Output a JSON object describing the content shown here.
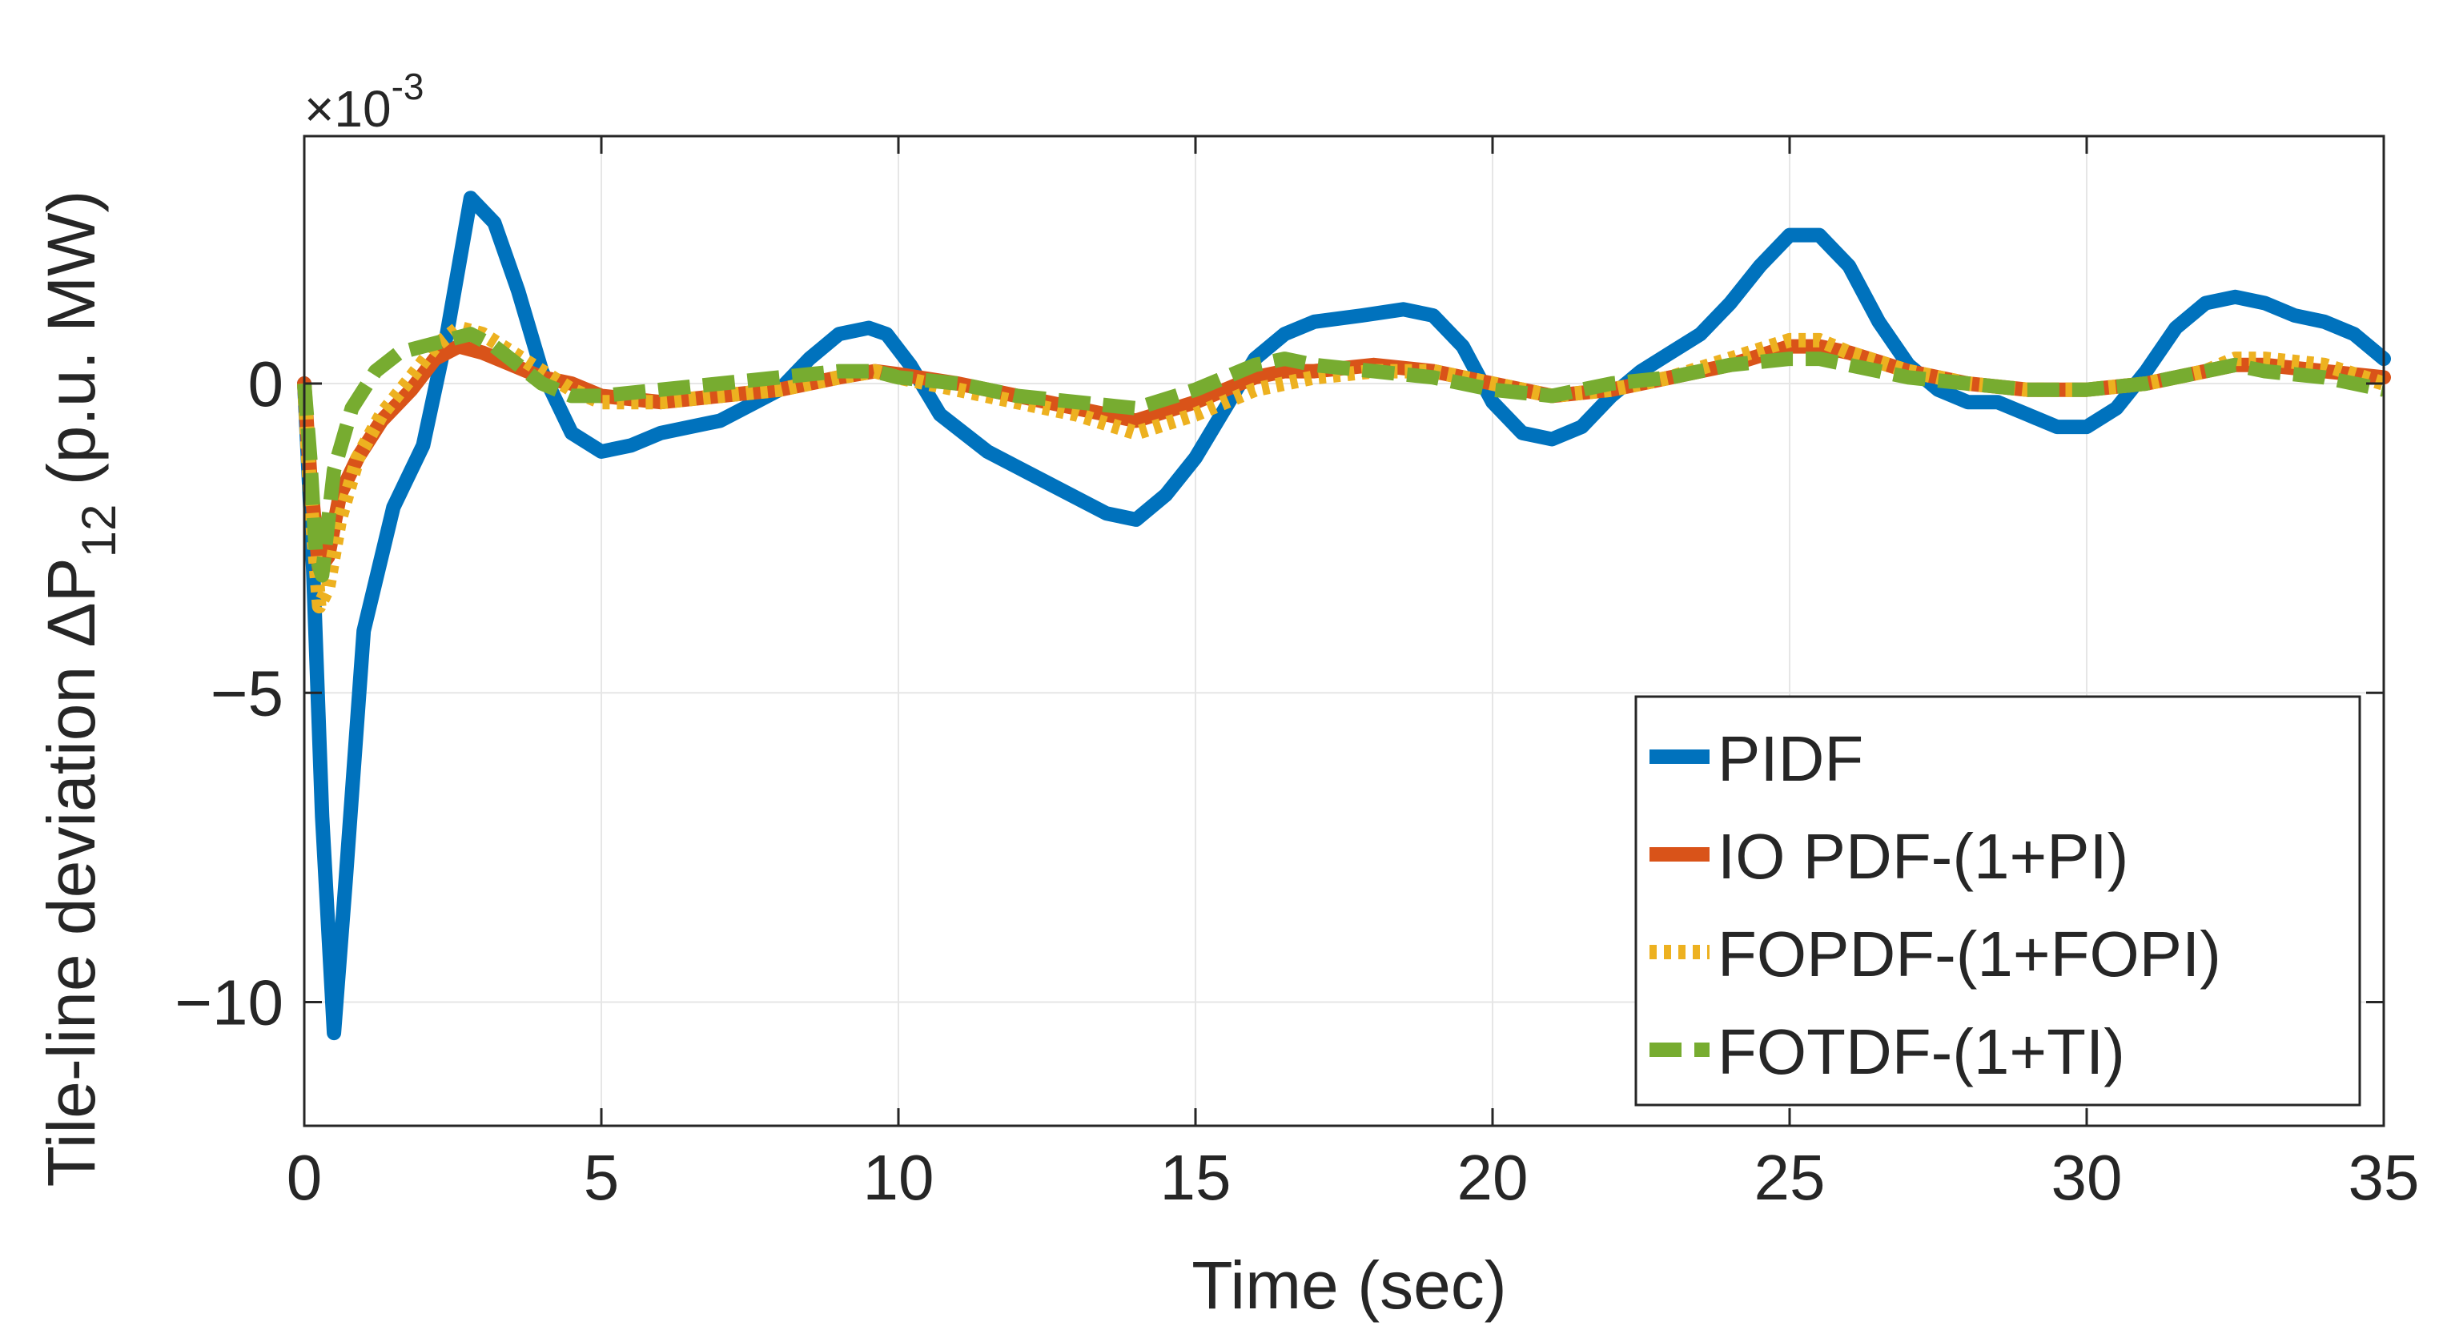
{
  "chart_data": {
    "type": "line",
    "xlabel": "Time (sec)",
    "ylabel_main": "Tile-line deviation ΔP",
    "ylabel_sub": "12",
    "ylabel_unit": " (p.u. MW)",
    "y_multiplier_base": "×10",
    "y_multiplier_exp": "-3",
    "xlim": [
      0,
      35
    ],
    "ylim": [
      -12,
      4
    ],
    "xticks": [
      0,
      5,
      10,
      15,
      20,
      25,
      30,
      35
    ],
    "yticks": [
      -10,
      -5,
      0
    ],
    "grid": true,
    "legend_position": "bottom-right",
    "series": [
      {
        "name": "PIDF",
        "color": "#0072BD",
        "dash": "solid",
        "x": [
          0,
          0.15,
          0.3,
          0.5,
          0.7,
          1.0,
          1.5,
          2.0,
          2.4,
          2.8,
          3.2,
          3.6,
          4.0,
          4.5,
          5.0,
          5.5,
          6.0,
          7.0,
          8.0,
          8.5,
          9.0,
          9.5,
          9.8,
          10.2,
          10.7,
          11.5,
          12.5,
          13.5,
          14.0,
          14.5,
          15.0,
          15.5,
          16.0,
          16.5,
          17.0,
          17.8,
          18.5,
          19.0,
          19.5,
          20.0,
          20.5,
          21.0,
          21.5,
          22.0,
          22.5,
          23.0,
          23.5,
          24.0,
          24.5,
          25.0,
          25.5,
          26.0,
          26.5,
          27.0,
          27.5,
          28.0,
          28.5,
          29.0,
          29.5,
          30.0,
          30.5,
          31.0,
          31.5,
          32.0,
          32.5,
          33.0,
          33.5,
          34.0,
          34.5,
          35.0
        ],
        "values": [
          0,
          -3,
          -7,
          -10.5,
          -8,
          -4,
          -2,
          -1,
          0.8,
          3.0,
          2.6,
          1.5,
          0.2,
          -0.8,
          -1.1,
          -1.0,
          -0.8,
          -0.6,
          -0.1,
          0.4,
          0.8,
          0.9,
          0.8,
          0.3,
          -0.5,
          -1.1,
          -1.6,
          -2.1,
          -2.2,
          -1.8,
          -1.2,
          -0.4,
          0.4,
          0.8,
          1.0,
          1.1,
          1.2,
          1.1,
          0.6,
          -0.3,
          -0.8,
          -0.9,
          -0.7,
          -0.2,
          0.2,
          0.5,
          0.8,
          1.3,
          1.9,
          2.4,
          2.4,
          1.9,
          1.0,
          0.3,
          -0.1,
          -0.3,
          -0.3,
          -0.5,
          -0.7,
          -0.7,
          -0.4,
          0.2,
          0.9,
          1.3,
          1.4,
          1.3,
          1.1,
          1.0,
          0.8,
          0.4
        ]
      },
      {
        "name": "IO PDF-(1+PI)",
        "color": "#D95319",
        "dash": "solid",
        "x": [
          0,
          0.1,
          0.25,
          0.4,
          0.6,
          0.9,
          1.3,
          1.8,
          2.2,
          2.6,
          3.0,
          3.5,
          4.0,
          4.5,
          5.0,
          6.0,
          7.0,
          8.0,
          9.0,
          9.6,
          10.0,
          11.0,
          12.0,
          13.0,
          14.0,
          15.0,
          16.0,
          16.5,
          17.0,
          18.0,
          19.0,
          20.0,
          21.0,
          22.0,
          23.0,
          24.0,
          25.0,
          25.5,
          26.0,
          27.0,
          28.0,
          29.0,
          30.0,
          31.0,
          32.0,
          32.5,
          33.0,
          34.0,
          35.0
        ],
        "values": [
          0,
          -1.5,
          -3.0,
          -2.8,
          -1.8,
          -1.2,
          -0.6,
          -0.1,
          0.4,
          0.6,
          0.5,
          0.3,
          0.1,
          0.0,
          -0.2,
          -0.3,
          -0.2,
          -0.1,
          0.1,
          0.2,
          0.15,
          0.0,
          -0.2,
          -0.4,
          -0.6,
          -0.3,
          0.1,
          0.2,
          0.2,
          0.3,
          0.2,
          0.0,
          -0.2,
          -0.1,
          0.1,
          0.3,
          0.6,
          0.6,
          0.5,
          0.2,
          0.0,
          -0.1,
          -0.1,
          0.0,
          0.2,
          0.3,
          0.3,
          0.2,
          0.1
        ]
      },
      {
        "name": "FOPDF-(1+FOPI)",
        "color": "#EDB120",
        "dash": "dotted",
        "x": [
          0,
          0.1,
          0.25,
          0.4,
          0.6,
          0.9,
          1.3,
          1.8,
          2.2,
          2.6,
          3.0,
          3.5,
          4.0,
          4.5,
          5.0,
          6.0,
          7.0,
          8.0,
          9.0,
          9.6,
          10.0,
          11.0,
          12.0,
          13.0,
          14.0,
          15.0,
          16.0,
          16.5,
          17.0,
          18.0,
          19.0,
          20.0,
          21.0,
          22.0,
          23.0,
          24.0,
          25.0,
          25.5,
          26.0,
          27.0,
          28.0,
          29.0,
          30.0,
          31.0,
          32.0,
          32.5,
          33.0,
          34.0,
          35.0
        ],
        "values": [
          0,
          -1.8,
          -3.6,
          -3.3,
          -2.2,
          -1.2,
          -0.5,
          0.1,
          0.6,
          0.9,
          0.8,
          0.5,
          0.2,
          -0.1,
          -0.3,
          -0.3,
          -0.2,
          -0.1,
          0.1,
          0.2,
          0.1,
          -0.1,
          -0.3,
          -0.5,
          -0.8,
          -0.5,
          -0.1,
          0.0,
          0.1,
          0.2,
          0.2,
          0.0,
          -0.2,
          -0.1,
          0.1,
          0.4,
          0.7,
          0.7,
          0.5,
          0.2,
          0.0,
          -0.1,
          -0.1,
          0.0,
          0.2,
          0.4,
          0.4,
          0.3,
          0.0
        ]
      },
      {
        "name": "FOTDF-(1+TI)",
        "color": "#77AC30",
        "dash": "dashed",
        "x": [
          0,
          0.1,
          0.2,
          0.3,
          0.5,
          0.8,
          1.2,
          1.6,
          2.0,
          2.4,
          2.8,
          3.2,
          3.6,
          4.0,
          4.5,
          5.0,
          6.0,
          7.0,
          8.0,
          9.0,
          9.6,
          10.0,
          11.0,
          12.0,
          13.0,
          14.0,
          15.0,
          16.0,
          16.5,
          17.0,
          18.0,
          19.0,
          20.0,
          21.0,
          22.0,
          23.0,
          24.0,
          25.0,
          25.5,
          26.0,
          27.0,
          28.0,
          29.0,
          30.0,
          31.0,
          32.0,
          32.5,
          33.0,
          34.0,
          35.0
        ],
        "values": [
          0,
          -1.2,
          -2.8,
          -3.1,
          -1.4,
          -0.4,
          0.2,
          0.5,
          0.6,
          0.7,
          0.8,
          0.6,
          0.3,
          0.0,
          -0.2,
          -0.2,
          -0.1,
          0.0,
          0.1,
          0.2,
          0.2,
          0.1,
          0.0,
          -0.2,
          -0.3,
          -0.4,
          -0.1,
          0.3,
          0.4,
          0.3,
          0.2,
          0.1,
          -0.1,
          -0.2,
          0.0,
          0.1,
          0.3,
          0.4,
          0.4,
          0.3,
          0.1,
          0.0,
          -0.1,
          -0.1,
          0.0,
          0.2,
          0.3,
          0.2,
          0.1,
          -0.1
        ]
      }
    ]
  }
}
